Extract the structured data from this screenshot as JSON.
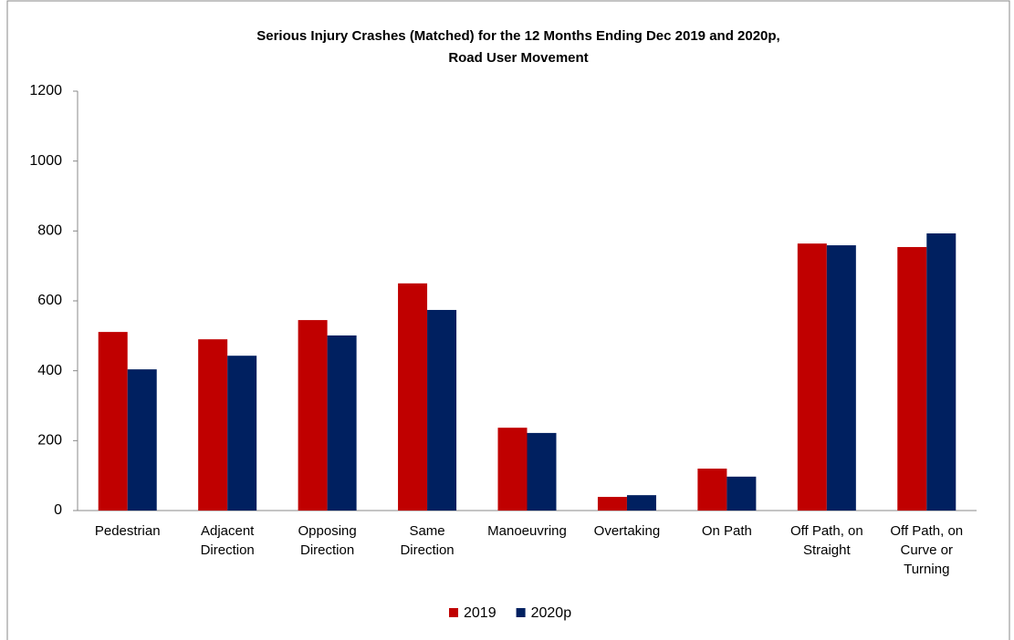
{
  "chart_data": {
    "type": "bar",
    "title": [
      "Serious Injury Crashes (Matched) for the 12 Months Ending Dec 2019 and 2020p,",
      "Road User Movement"
    ],
    "categories": [
      "Pedestrian",
      "Adjacent Direction",
      "Opposing Direction",
      "Same Direction",
      "Manoeuvring",
      "Overtaking",
      "On Path",
      "Off Path, on Straight",
      "Off Path, on Curve or Turning"
    ],
    "series": [
      {
        "name": "2019",
        "color": "#c00000",
        "values": [
          511,
          490,
          545,
          650,
          237,
          39,
          120,
          764,
          754
        ]
      },
      {
        "name": "2020p",
        "color": "#002060",
        "values": [
          404,
          443,
          501,
          574,
          222,
          44,
          97,
          759,
          793
        ]
      }
    ],
    "ylim": [
      0,
      1200
    ],
    "yticks": [
      0,
      200,
      400,
      600,
      800,
      1000,
      1200
    ],
    "legend": "bottom"
  }
}
